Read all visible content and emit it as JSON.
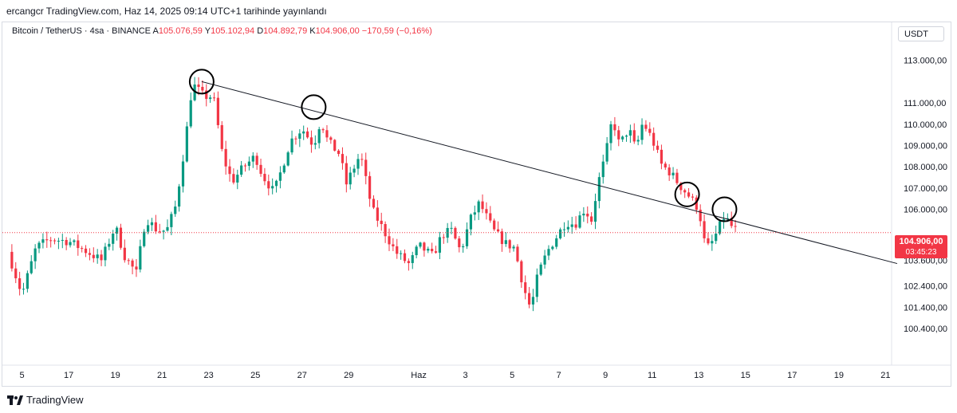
{
  "published_by": "ercangcr TradingView.com, Haz 14, 2025 09:14 UTC+1 tarihinde yayınlandı",
  "legend": {
    "symbol": "Bitcoin / TetherUS · 4sa · BINANCE",
    "open_label": "A",
    "open": "105.076,59",
    "high_label": "Y",
    "high": "105.102,94",
    "low_label": "D",
    "low": "104.892,79",
    "close_label": "K",
    "close": "104.906,00",
    "change": "−170,59 (−0,16%)"
  },
  "currency_button": "USDT",
  "last_price": {
    "price": "104.906,00",
    "countdown": "03:45:23"
  },
  "brand": "TradingView",
  "colors": {
    "up": "#089981",
    "down": "#f23645",
    "trendline": "#131722",
    "price_line": "#f23645"
  },
  "chart_data": {
    "type": "candlestick",
    "x_tick_labels": [
      "5",
      "17",
      "19",
      "21",
      "23",
      "25",
      "27",
      "29",
      "Haz",
      "3",
      "5",
      "7",
      "9",
      "11",
      "13",
      "15",
      "17",
      "19",
      "21"
    ],
    "y_tick_labels": [
      "113.000,00",
      "111.000,00",
      "110.000,00",
      "109.000,00",
      "108.000,00",
      "107.000,00",
      "106.000,00",
      "103.600,00",
      "102.400,00",
      "101.400,00",
      "100.400,00"
    ],
    "y_ticks": [
      113000,
      111000,
      110000,
      109000,
      108000,
      107000,
      106000,
      103600,
      102400,
      101400,
      100400
    ],
    "ylim": [
      99500,
      114000
    ],
    "x_ticks": [
      15,
      17,
      19,
      21,
      23,
      25,
      27,
      29,
      32,
      34,
      36,
      38,
      40,
      42,
      44,
      46,
      48,
      50,
      52
    ],
    "xlim": [
      14.4,
      52.5
    ],
    "last_price": 104906,
    "trendline": [
      [
        22.7,
        112000
      ],
      [
        52.5,
        103450
      ]
    ],
    "highlight_circles": [
      [
        22.7,
        112000
      ],
      [
        27.5,
        110800
      ],
      [
        43.5,
        106700
      ],
      [
        45.1,
        106000
      ]
    ],
    "anchors": [
      [
        14.4,
        104000
      ],
      [
        15.0,
        102000
      ],
      [
        15.6,
        104200
      ],
      [
        16.2,
        104600
      ],
      [
        17.0,
        104500
      ],
      [
        17.8,
        104000
      ],
      [
        18.4,
        103600
      ],
      [
        19.0,
        105200
      ],
      [
        19.4,
        103800
      ],
      [
        19.9,
        103000
      ],
      [
        20.3,
        105600
      ],
      [
        20.8,
        105000
      ],
      [
        21.2,
        105000
      ],
      [
        21.6,
        106200
      ],
      [
        22.0,
        109200
      ],
      [
        22.3,
        111900
      ],
      [
        22.8,
        111300
      ],
      [
        23.2,
        111300
      ],
      [
        23.6,
        108500
      ],
      [
        24.0,
        107300
      ],
      [
        24.5,
        108000
      ],
      [
        25.0,
        108500
      ],
      [
        25.3,
        107600
      ],
      [
        25.8,
        106800
      ],
      [
        26.1,
        107800
      ],
      [
        26.5,
        109200
      ],
      [
        27.0,
        109800
      ],
      [
        27.5,
        109000
      ],
      [
        27.8,
        110200
      ],
      [
        28.1,
        109200
      ],
      [
        28.6,
        108600
      ],
      [
        28.9,
        107200
      ],
      [
        29.5,
        108600
      ],
      [
        30.0,
        106000
      ],
      [
        30.5,
        105000
      ],
      [
        31.0,
        104000
      ],
      [
        31.3,
        103700
      ],
      [
        31.6,
        103400
      ],
      [
        32.0,
        104300
      ],
      [
        32.6,
        103800
      ],
      [
        33.0,
        104800
      ],
      [
        33.4,
        105000
      ],
      [
        33.8,
        104000
      ],
      [
        34.2,
        105500
      ],
      [
        34.6,
        106300
      ],
      [
        35.2,
        105000
      ],
      [
        35.7,
        104400
      ],
      [
        36.1,
        104200
      ],
      [
        36.5,
        102300
      ],
      [
        36.8,
        101300
      ],
      [
        37.1,
        102900
      ],
      [
        37.5,
        104000
      ],
      [
        37.9,
        104700
      ],
      [
        38.3,
        105400
      ],
      [
        38.7,
        105300
      ],
      [
        39.1,
        106000
      ],
      [
        39.4,
        105500
      ],
      [
        39.7,
        107300
      ],
      [
        40.0,
        108500
      ],
      [
        40.3,
        110300
      ],
      [
        40.6,
        109000
      ],
      [
        41.0,
        109800
      ],
      [
        41.3,
        108800
      ],
      [
        41.6,
        110100
      ],
      [
        42.0,
        109300
      ],
      [
        42.4,
        108100
      ],
      [
        42.8,
        107700
      ],
      [
        43.2,
        107100
      ],
      [
        43.6,
        106600
      ],
      [
        44.0,
        106000
      ],
      [
        44.3,
        104100
      ],
      [
        44.6,
        104500
      ],
      [
        45.1,
        105700
      ],
      [
        45.4,
        105200
      ],
      [
        45.7,
        104906
      ]
    ]
  }
}
